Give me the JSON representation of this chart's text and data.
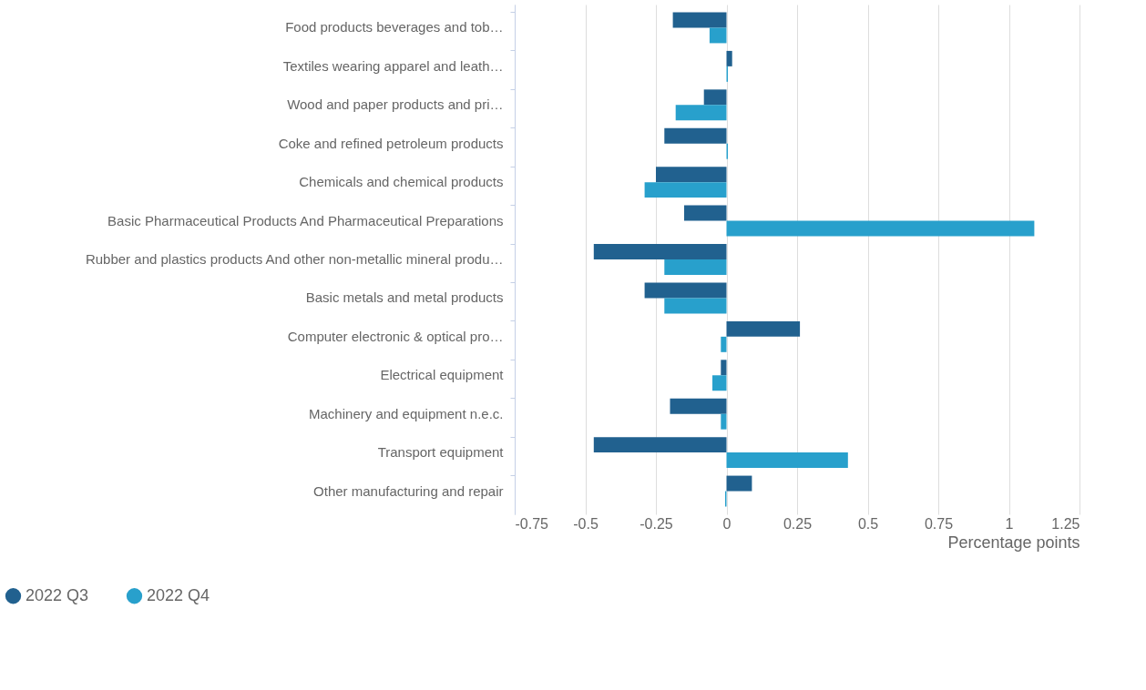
{
  "chart_data": {
    "type": "bar",
    "orientation": "horizontal",
    "xlabel": "Percentage points",
    "categories": [
      "Food products beverages and tob…",
      "Textiles wearing apparel and leath…",
      "Wood and paper products and pri…",
      "Coke and refined petroleum products",
      "Chemicals and chemical products",
      "Basic Pharmaceutical Products And Pharmaceutical Preparations",
      "Rubber and plastics products And other non-metallic mineral produ…",
      "Basic metals and metal products",
      "Computer electronic & optical pro…",
      "Electrical equipment",
      "Machinery and equipment n.e.c.",
      "Transport equipment",
      "Other manufacturing and repair"
    ],
    "series": [
      {
        "name": "2022 Q3",
        "color": "#21618f",
        "values": [
          -0.19,
          0.02,
          -0.08,
          -0.22,
          -0.25,
          -0.15,
          -0.47,
          -0.29,
          0.26,
          -0.02,
          -0.2,
          -0.47,
          0.09
        ]
      },
      {
        "name": "2022 Q4",
        "color": "#28a0cc",
        "values": [
          -0.06,
          0.005,
          -0.18,
          0.005,
          -0.29,
          1.09,
          -0.22,
          -0.22,
          -0.02,
          -0.05,
          -0.02,
          0.43,
          -0.005
        ]
      }
    ],
    "xlim": [
      -0.75,
      1.25
    ],
    "xticks": [
      -0.75,
      -0.5,
      -0.25,
      0,
      0.25,
      0.5,
      0.75,
      1,
      1.25
    ],
    "grid": "x",
    "legend": "bottom left"
  }
}
